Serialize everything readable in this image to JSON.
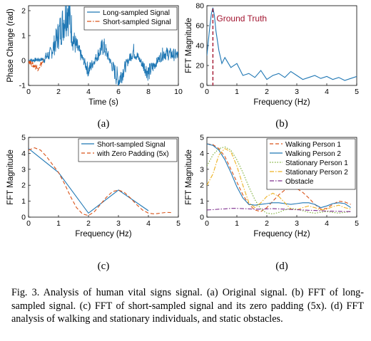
{
  "caption": "Fig. 3.   Analysis of human vital signs signal. (a) Original signal. (b) FFT of long-sampled signal. (c) FFT of short-sampled signal and its zero padding (5x). (d) FFT analysis of walking and stationary individuals, and static obstacles.",
  "colors": {
    "blue": "#1f77b4",
    "orange": "#d95319",
    "yellow": "#edb120",
    "green": "#77ac30",
    "purple": "#7e2f8e",
    "maroon": "#a2142f"
  },
  "chart_data": [
    {
      "panel_label": "(a)",
      "type": "line",
      "xlabel": "Time (s)",
      "ylabel": "Phase Change (rad)",
      "xlim": [
        0,
        10
      ],
      "ylim": [
        -1,
        2.2
      ],
      "xticks": [
        "0",
        "2",
        "4",
        "6",
        "8",
        "10"
      ],
      "yticks": [
        "-1",
        "0",
        "1",
        "2"
      ],
      "legend": {
        "position": "top-right",
        "entries": [
          "Long-sampled Signal",
          "Short-sampled Signal"
        ]
      },
      "series": [
        {
          "name": "Long-sampled Signal",
          "color": "#1f77b4",
          "style": "solid",
          "x_range": [
            0,
            10
          ],
          "description_points": [
            [
              0,
              0
            ],
            [
              1,
              0.05
            ],
            [
              1.5,
              0.3
            ],
            [
              2.3,
              1.5
            ],
            [
              2.6,
              2.2
            ],
            [
              3,
              0.8
            ],
            [
              4,
              -0.4
            ],
            [
              5,
              0.6
            ],
            [
              6,
              -0.8
            ],
            [
              7,
              0.4
            ],
            [
              8,
              -0.5
            ],
            [
              9,
              0.3
            ],
            [
              10,
              0.2
            ]
          ]
        },
        {
          "name": "Short-sampled Signal",
          "color": "#d95319",
          "style": "dashdot",
          "x_range": [
            0,
            1
          ],
          "description_points": [
            [
              0,
              0
            ],
            [
              0.3,
              -0.2
            ],
            [
              0.6,
              -0.3
            ],
            [
              0.9,
              -0.1
            ],
            [
              1,
              0
            ]
          ]
        }
      ]
    },
    {
      "panel_label": "(b)",
      "type": "line",
      "xlabel": "Frequency (Hz)",
      "ylabel": "FFT Magnitude",
      "xlim": [
        0,
        5
      ],
      "ylim": [
        0,
        80
      ],
      "xticks": [
        "0",
        "1",
        "2",
        "3",
        "4",
        "5"
      ],
      "yticks": [
        "0",
        "20",
        "40",
        "60",
        "80"
      ],
      "annotation": "Ground Truth",
      "ground_truth_x": 0.2,
      "series": [
        {
          "name": "",
          "color": "#1f77b4",
          "x": [
            0,
            0.05,
            0.1,
            0.15,
            0.2,
            0.25,
            0.3,
            0.4,
            0.5,
            0.6,
            0.8,
            1,
            1.2,
            1.4,
            1.6,
            1.8,
            2,
            2.2,
            2.4,
            2.6,
            2.8,
            3,
            3.2,
            3.4,
            3.6,
            3.8,
            4,
            4.2,
            4.4,
            4.6,
            4.8,
            5
          ],
          "y": [
            30,
            45,
            60,
            72,
            78,
            70,
            55,
            35,
            22,
            28,
            18,
            22,
            10,
            12,
            8,
            15,
            6,
            10,
            12,
            8,
            14,
            10,
            6,
            8,
            10,
            7,
            9,
            6,
            8,
            5,
            7,
            9
          ]
        }
      ]
    },
    {
      "panel_label": "(c)",
      "type": "line",
      "xlabel": "Frequency (Hz)",
      "ylabel": "FFT Magnitude",
      "xlim": [
        0,
        5
      ],
      "ylim": [
        0,
        5
      ],
      "xticks": [
        "0",
        "1",
        "2",
        "3",
        "4",
        "5"
      ],
      "yticks": [
        "0",
        "1",
        "2",
        "3",
        "4",
        "5"
      ],
      "legend": {
        "position": "top-right",
        "entries": [
          "Short-sampled Signal",
          "with Zero Padding (5x)"
        ]
      },
      "series": [
        {
          "name": "Short-sampled Signal",
          "color": "#1f77b4",
          "style": "solid",
          "x": [
            0,
            1,
            2,
            3,
            4
          ],
          "y": [
            4.3,
            2.8,
            0.25,
            1.7,
            0.4
          ]
        },
        {
          "name": "with Zero Padding (5x)",
          "color": "#d95319",
          "style": "dashed",
          "x": [
            0,
            0.2,
            0.4,
            0.6,
            0.8,
            1,
            1.2,
            1.4,
            1.6,
            1.8,
            2,
            2.2,
            2.4,
            2.6,
            2.8,
            3,
            3.2,
            3.4,
            3.6,
            3.8,
            4,
            4.2,
            4.4,
            4.6,
            4.8
          ],
          "y": [
            4.2,
            4.35,
            4.2,
            3.8,
            3.3,
            2.8,
            2.1,
            1.3,
            0.6,
            0.2,
            0.1,
            0.35,
            0.8,
            1.25,
            1.6,
            1.7,
            1.55,
            1.2,
            0.8,
            0.45,
            0.25,
            0.2,
            0.25,
            0.3,
            0.28
          ]
        }
      ]
    },
    {
      "panel_label": "(d)",
      "type": "line",
      "xlabel": "Frequency (Hz)",
      "ylabel": "FFT Magnitude",
      "xlim": [
        0,
        5
      ],
      "ylim": [
        0,
        5
      ],
      "xticks": [
        "0",
        "1",
        "2",
        "3",
        "4",
        "5"
      ],
      "yticks": [
        "0",
        "1",
        "2",
        "3",
        "4",
        "5"
      ],
      "legend": {
        "position": "top-right",
        "entries": [
          "Walking Person 1",
          "Walking Person 2",
          "Stationary Person 1",
          "Stationary Person 2",
          "Obstacle"
        ]
      },
      "x": [
        0,
        0.2,
        0.4,
        0.6,
        0.8,
        1,
        1.2,
        1.4,
        1.6,
        1.8,
        2,
        2.2,
        2.4,
        2.6,
        2.8,
        3,
        3.2,
        3.4,
        3.6,
        3.8,
        4,
        4.2,
        4.4,
        4.6,
        4.8
      ],
      "series": [
        {
          "name": "Walking Person 1",
          "color": "#d95319",
          "style": "dashed",
          "y": [
            4.6,
            4.55,
            4.3,
            3.8,
            3.0,
            2.2,
            1.4,
            0.8,
            0.45,
            0.35,
            0.6,
            1.0,
            1.4,
            1.7,
            1.85,
            1.8,
            1.55,
            1.2,
            0.8,
            0.5,
            0.55,
            0.8,
            1.0,
            0.95,
            0.8
          ]
        },
        {
          "name": "Walking Person 2",
          "color": "#1f77b4",
          "style": "solid",
          "y": [
            4.6,
            4.5,
            4.2,
            3.6,
            2.8,
            1.9,
            1.2,
            0.8,
            0.75,
            0.8,
            0.85,
            0.9,
            0.9,
            0.85,
            0.8,
            0.85,
            0.9,
            0.9,
            0.8,
            0.6,
            0.7,
            0.85,
            0.9,
            0.85,
            0.6
          ]
        },
        {
          "name": "Stationary Person 1",
          "color": "#77ac30",
          "style": "dotted",
          "y": [
            3.2,
            3.9,
            4.3,
            4.4,
            4.2,
            3.6,
            2.8,
            1.9,
            1.1,
            0.5,
            0.25,
            0.2,
            0.3,
            0.45,
            0.55,
            0.5,
            0.4,
            0.3,
            0.25,
            0.3,
            0.35,
            0.3,
            0.25,
            0.3,
            0.35
          ]
        },
        {
          "name": "Stationary Person 2",
          "color": "#edb120",
          "style": "dashdot",
          "y": [
            2.0,
            2.7,
            3.9,
            4.3,
            4.1,
            3.2,
            2.0,
            0.9,
            0.6,
            0.9,
            1.3,
            1.5,
            1.3,
            0.9,
            0.5,
            0.45,
            0.6,
            0.7,
            0.6,
            0.45,
            0.5,
            0.65,
            0.75,
            0.6,
            0.5
          ]
        },
        {
          "name": "Obstacle",
          "color": "#7e2f8e",
          "style": "dashdot",
          "y": [
            0.45,
            0.47,
            0.5,
            0.52,
            0.55,
            0.55,
            0.53,
            0.52,
            0.5,
            0.5,
            0.52,
            0.53,
            0.52,
            0.5,
            0.48,
            0.47,
            0.45,
            0.43,
            0.42,
            0.4,
            0.38,
            0.37,
            0.36,
            0.35,
            0.35
          ]
        }
      ]
    }
  ]
}
